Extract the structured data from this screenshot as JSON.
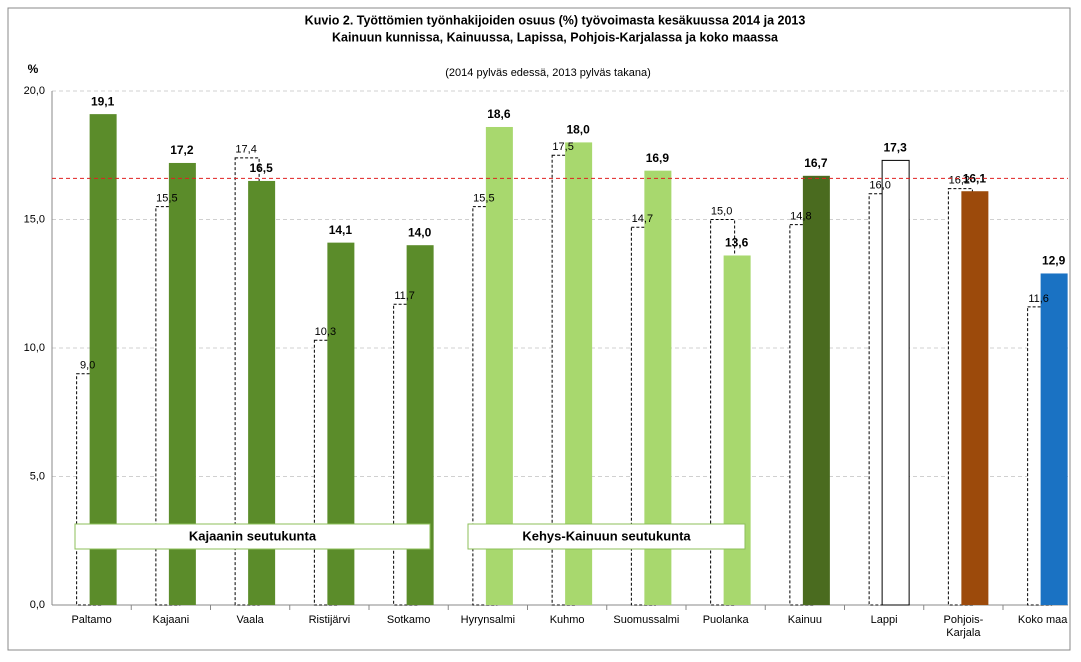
{
  "chart_data": {
    "type": "bar",
    "title": [
      "Kuvio 2. Työttömien työnhakijoiden osuus (%) työvoimasta kesäkuussa 2014 ja 2013",
      "Kainuun kunnissa, Kainuussa, Lapissa, Pohjois-Karjalassa ja koko maassa"
    ],
    "subtitle": "(2014 pylväs edessä, 2013 pylväs takana)",
    "y_label": "%",
    "categories": [
      "Paltamo",
      "Kajaani",
      "Vaala",
      "Ristijärvi",
      "Sotkamo",
      "Hyrynsalmi",
      "Kuhmo",
      "Suomussalmi",
      "Puolanka",
      "Kainuu",
      "Lappi",
      "Pohjois-\nKarjala",
      "Koko maa"
    ],
    "series": [
      {
        "values": [
          19.1,
          17.2,
          16.5,
          14.1,
          14.0,
          18.6,
          18.0,
          16.9,
          13.6,
          16.7,
          17.3,
          16.1,
          12.9
        ],
        "value_labels": [
          "19,1",
          "17,2",
          "16,5",
          "14,1",
          "14,0",
          "18,6",
          "18,0",
          "16,9",
          "13,6",
          "16,7",
          "17,3",
          "16,1",
          "12,9"
        ],
        "colors": [
          "#5b8c2a",
          "#5b8c2a",
          "#5b8c2a",
          "#5b8c2a",
          "#5b8c2a",
          "#a8d86e",
          "#a8d86e",
          "#a8d86e",
          "#a8d86e",
          "#4a6b1f",
          "#ffffff",
          "#9c4a0b",
          "#1a72c3"
        ]
      },
      {
        "values": [
          9.0,
          15.5,
          17.4,
          10.3,
          11.7,
          15.5,
          17.5,
          14.7,
          15.0,
          14.8,
          16.0,
          16.2,
          11.6
        ],
        "value_labels": [
          "9,0",
          "15,5",
          "17,4",
          "10,3",
          "11,7",
          "15,5",
          "17,5",
          "14,7",
          "15,0",
          "14,8",
          "16,0",
          "16,2",
          "11,6"
        ],
        "color": "#ffffff",
        "line_style": "dashed"
      }
    ],
    "reference_line": {
      "value": 16.6,
      "color": "#e02020"
    },
    "annotations": [
      "Kajaanin seutukunta",
      "Kehys-Kainuun seutukunta"
    ],
    "ylim": [
      0,
      20
    ],
    "yticks": [
      {
        "value": 0,
        "label": "0,0"
      },
      {
        "value": 5,
        "label": "5,0"
      },
      {
        "value": 10,
        "label": "10,0"
      },
      {
        "value": 15,
        "label": "15,0"
      },
      {
        "value": 20,
        "label": "20,0"
      }
    ],
    "grid": true
  }
}
